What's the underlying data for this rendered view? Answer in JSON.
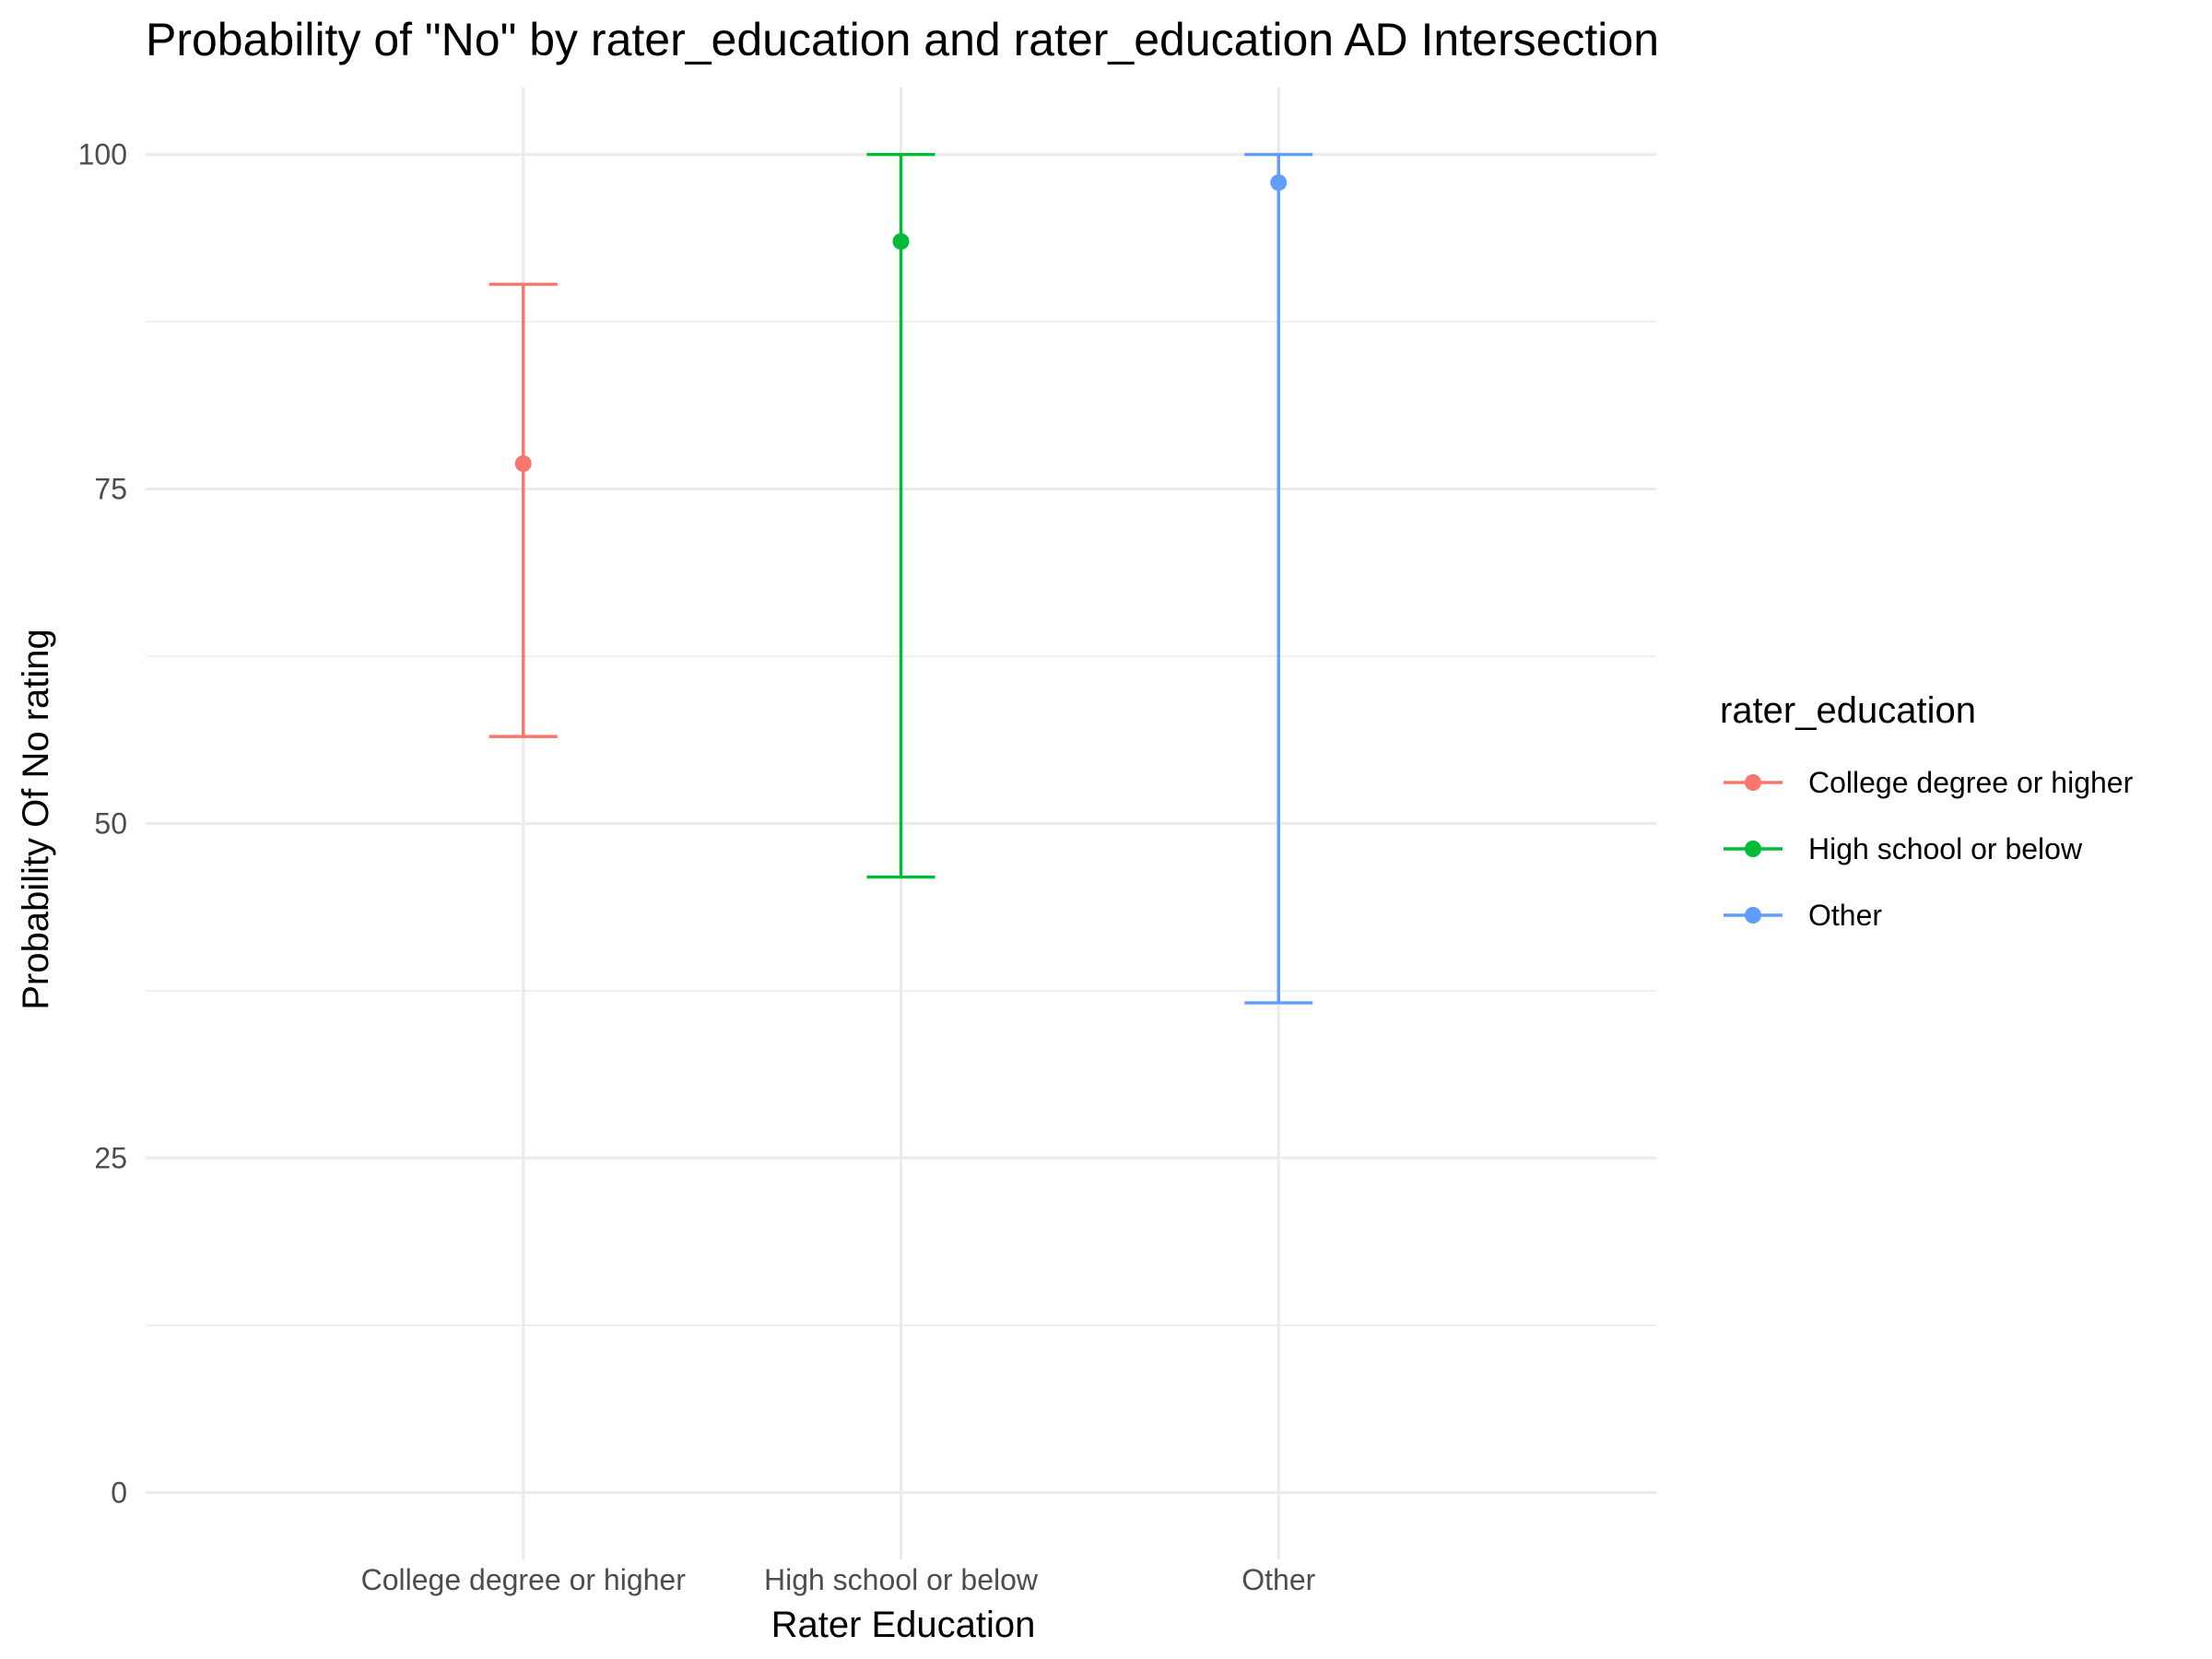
{
  "chart_data": {
    "type": "errorbar",
    "title": "Probability of \"No\" by rater_education and  rater_education  AD Intersection",
    "xlabel": "Rater Education",
    "ylabel": "Probability Of No rating",
    "ylim": [
      -5,
      105
    ],
    "y_ticks": [
      0,
      25,
      50,
      75,
      100
    ],
    "y_ticks_text": [
      "0",
      "25",
      "50",
      "75",
      "100"
    ],
    "y_minor_ticks": [
      12.5,
      37.5,
      62.5,
      87.5
    ],
    "grid": true,
    "categories": [
      "College degree or higher",
      "High school or below",
      "Other"
    ],
    "series": [
      {
        "name": "College degree or higher",
        "category": "College degree or higher",
        "value": 76.9,
        "lower": 56.5,
        "upper": 90.3,
        "color": "#F8766D"
      },
      {
        "name": "High school or below",
        "category": "High school or below",
        "value": 93.5,
        "lower": 46.0,
        "upper": 100.0,
        "color": "#00BA38"
      },
      {
        "name": "Other",
        "category": "Other",
        "value": 97.9,
        "lower": 36.6,
        "upper": 100.0,
        "color": "#619CFF"
      }
    ],
    "legend": {
      "title": "rater_education",
      "position": "right",
      "entries": [
        "College degree or higher",
        "High school or below",
        "Other"
      ]
    }
  }
}
